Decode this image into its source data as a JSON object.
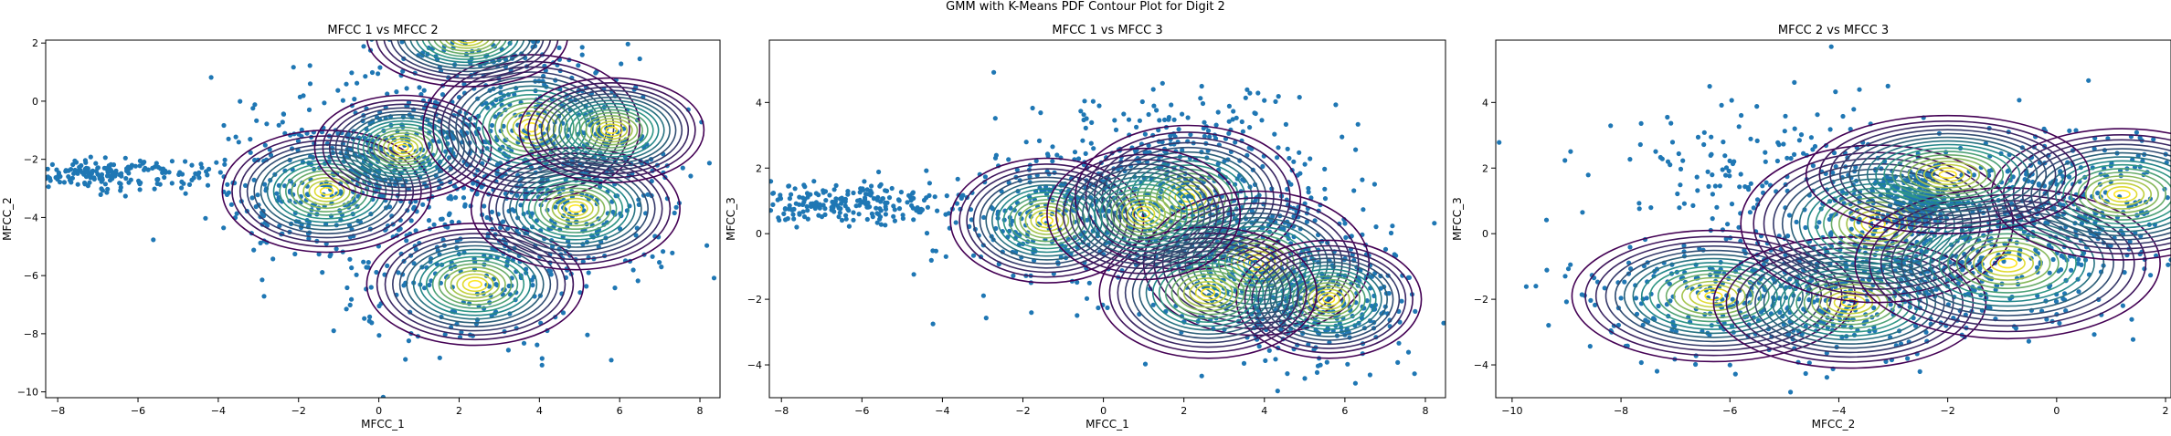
{
  "figure": {
    "suptitle": "GMM with K-Means PDF Contour Plot for Digit 2"
  },
  "colors": {
    "points": "#1f77b4",
    "contour_low": "#440154",
    "contour_mid": "#21908c",
    "contour_high": "#fde725"
  },
  "chart_data": [
    {
      "type": "scatter",
      "overlay": "contour",
      "title": "MFCC 1 vs MFCC 2",
      "xlabel": "MFCC_1",
      "ylabel": "MFCC_2",
      "xlim": [
        -8.3,
        8.5
      ],
      "ylim": [
        -10.2,
        2.1
      ],
      "xticks": [
        -8,
        -6,
        -4,
        -2,
        0,
        2,
        4,
        6,
        8
      ],
      "yticks": [
        -10,
        -8,
        -6,
        -4,
        -2,
        0,
        2
      ],
      "clusters": [
        {
          "cx": -7.0,
          "cy": -2.5,
          "sx": 1.5,
          "sy": 0.25,
          "n": 220
        },
        {
          "cx": -1.3,
          "cy": -3.0,
          "sx": 1.5,
          "sy": 1.4,
          "n": 260
        },
        {
          "cx": 0.6,
          "cy": -1.6,
          "sx": 1.4,
          "sy": 1.2,
          "n": 200
        },
        {
          "cx": 2.2,
          "cy": -6.3,
          "sx": 1.6,
          "sy": 1.3,
          "n": 180
        },
        {
          "cx": 3.8,
          "cy": -0.8,
          "sx": 1.6,
          "sy": 1.5,
          "n": 260
        },
        {
          "cx": 5.0,
          "cy": -3.7,
          "sx": 1.5,
          "sy": 1.2,
          "n": 220
        },
        {
          "cx": 2.3,
          "cy": 2.0,
          "sx": 1.5,
          "sy": 1.0,
          "n": 120
        }
      ],
      "components": [
        {
          "mx": -1.3,
          "my": -3.1,
          "sx": 2.6,
          "sy": 2.1
        },
        {
          "mx": 0.6,
          "my": -1.6,
          "sx": 2.2,
          "sy": 1.8
        },
        {
          "mx": 2.4,
          "my": -6.3,
          "sx": 2.7,
          "sy": 2.1
        },
        {
          "mx": 3.8,
          "my": -0.9,
          "sx": 2.7,
          "sy": 2.5
        },
        {
          "mx": 4.9,
          "my": -3.7,
          "sx": 2.6,
          "sy": 2.1
        },
        {
          "mx": 2.2,
          "my": 2.2,
          "sx": 2.5,
          "sy": 1.7
        },
        {
          "mx": 5.8,
          "my": -1.0,
          "sx": 2.3,
          "sy": 1.8
        }
      ]
    },
    {
      "type": "scatter",
      "overlay": "contour",
      "title": "MFCC 1 vs MFCC 3",
      "xlabel": "MFCC_1",
      "ylabel": "MFCC_3",
      "xlim": [
        -8.3,
        8.5
      ],
      "ylim": [
        -5.0,
        5.9
      ],
      "xticks": [
        -8,
        -6,
        -4,
        -2,
        0,
        2,
        4,
        6,
        8
      ],
      "yticks": [
        -4,
        -2,
        0,
        2,
        4
      ],
      "clusters": [
        {
          "cx": -6.5,
          "cy": 0.9,
          "sx": 1.3,
          "sy": 0.3,
          "n": 220
        },
        {
          "cx": -1.5,
          "cy": 0.4,
          "sx": 1.5,
          "sy": 1.1,
          "n": 240
        },
        {
          "cx": 2.0,
          "cy": 1.2,
          "sx": 1.8,
          "sy": 1.3,
          "n": 280
        },
        {
          "cx": 3.8,
          "cy": -0.9,
          "sx": 1.6,
          "sy": 1.2,
          "n": 260
        },
        {
          "cx": 5.5,
          "cy": -2.2,
          "sx": 1.2,
          "sy": 1.0,
          "n": 200
        },
        {
          "cx": 2.0,
          "cy": 3.2,
          "sx": 2.0,
          "sy": 0.8,
          "n": 90
        }
      ],
      "components": [
        {
          "mx": -1.4,
          "my": 0.4,
          "sx": 2.4,
          "sy": 1.9
        },
        {
          "mx": 2.1,
          "my": 1.1,
          "sx": 2.8,
          "sy": 2.2
        },
        {
          "mx": 3.8,
          "my": -0.9,
          "sx": 2.8,
          "sy": 2.2
        },
        {
          "mx": 5.6,
          "my": -2.0,
          "sx": 2.3,
          "sy": 1.8
        },
        {
          "mx": 2.6,
          "my": -1.8,
          "sx": 2.7,
          "sy": 2.0
        },
        {
          "mx": 1.0,
          "my": 0.6,
          "sx": 2.4,
          "sy": 2.0
        }
      ]
    },
    {
      "type": "scatter",
      "overlay": "contour",
      "title": "MFCC 2 vs MFCC 3",
      "xlabel": "MFCC_2",
      "ylabel": "MFCC_3",
      "xlim": [
        -10.3,
        2.1
      ],
      "ylim": [
        -5.0,
        5.9
      ],
      "xticks": [
        -10,
        -8,
        -6,
        -4,
        -2,
        0,
        2
      ],
      "yticks": [
        -4,
        -2,
        0,
        2,
        4
      ],
      "clusters": [
        {
          "cx": -2.6,
          "cy": 0.9,
          "sx": 0.3,
          "sy": 0.5,
          "n": 200
        },
        {
          "cx": -6.3,
          "cy": -1.9,
          "sx": 1.4,
          "sy": 1.0,
          "n": 200
        },
        {
          "cx": -3.8,
          "cy": -2.1,
          "sx": 1.3,
          "sy": 1.0,
          "n": 180
        },
        {
          "cx": -3.3,
          "cy": 0.3,
          "sx": 1.4,
          "sy": 1.2,
          "n": 260
        },
        {
          "cx": -1.0,
          "cy": -0.8,
          "sx": 1.5,
          "sy": 1.2,
          "n": 260
        },
        {
          "cx": 0.6,
          "cy": 1.3,
          "sx": 1.3,
          "sy": 1.0,
          "n": 200
        },
        {
          "cx": -5.5,
          "cy": 2.5,
          "sx": 1.8,
          "sy": 1.0,
          "n": 120
        }
      ],
      "components": [
        {
          "mx": -6.3,
          "my": -1.9,
          "sx": 2.6,
          "sy": 2.0
        },
        {
          "mx": -3.8,
          "my": -2.1,
          "sx": 2.5,
          "sy": 2.0
        },
        {
          "mx": -3.3,
          "my": 0.3,
          "sx": 2.5,
          "sy": 2.4
        },
        {
          "mx": -0.9,
          "my": -0.9,
          "sx": 2.8,
          "sy": 2.3
        },
        {
          "mx": 1.2,
          "my": 1.2,
          "sx": 2.4,
          "sy": 2.0
        },
        {
          "mx": -2.0,
          "my": 1.8,
          "sx": 2.6,
          "sy": 1.8
        }
      ]
    }
  ]
}
